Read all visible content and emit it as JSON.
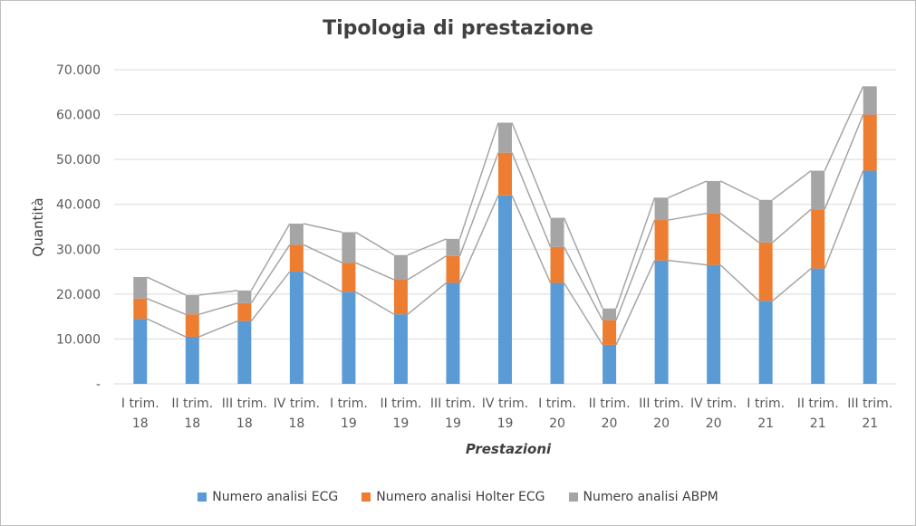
{
  "chart_data": {
    "type": "bar",
    "stacked": true,
    "title": "Tipologia di prestazione",
    "xlabel": "Prestazioni",
    "ylabel": "Quantità",
    "ylim": [
      0,
      70000
    ],
    "y_ticks": [
      "-",
      "10.000",
      "20.000",
      "30.000",
      "40.000",
      "50.000",
      "60.000",
      "70.000"
    ],
    "y_tick_values": [
      0,
      10000,
      20000,
      30000,
      40000,
      50000,
      60000,
      70000
    ],
    "grid": true,
    "legend_position": "bottom",
    "series_lines": true,
    "categories": [
      [
        "I trim.",
        "18"
      ],
      [
        "II trim.",
        "18"
      ],
      [
        "III trim.",
        "18"
      ],
      [
        "IV trim.",
        "18"
      ],
      [
        "I trim.",
        "19"
      ],
      [
        "II trim.",
        "19"
      ],
      [
        "III trim.",
        "19"
      ],
      [
        "IV trim.",
        "19"
      ],
      [
        "I trim.",
        "20"
      ],
      [
        "II trim.",
        "20"
      ],
      [
        "III trim.",
        "20"
      ],
      [
        "IV trim.",
        "20"
      ],
      [
        "I trim.",
        "21"
      ],
      [
        "II trim.",
        "21"
      ],
      [
        "III trim.",
        "21"
      ]
    ],
    "series": [
      {
        "name": "Numero analisi ECG",
        "color": "#5b9bd5",
        "values": [
          14500,
          10500,
          14000,
          25000,
          20500,
          15500,
          22500,
          42000,
          22500,
          8700,
          27500,
          26500,
          18500,
          25700,
          47500
        ]
      },
      {
        "name": "Numero analisi Holter ECG",
        "color": "#ed7d31",
        "values": [
          4500,
          5000,
          4000,
          6000,
          6500,
          7700,
          6000,
          9500,
          8000,
          5500,
          9000,
          11500,
          13000,
          13200,
          12500
        ]
      },
      {
        "name": "Numero analisi ABPM",
        "color": "#a5a5a5",
        "values": [
          4800,
          4300,
          2800,
          4700,
          6800,
          5500,
          3800,
          6700,
          6500,
          2600,
          5000,
          7200,
          9500,
          8600,
          6300
        ]
      }
    ]
  }
}
